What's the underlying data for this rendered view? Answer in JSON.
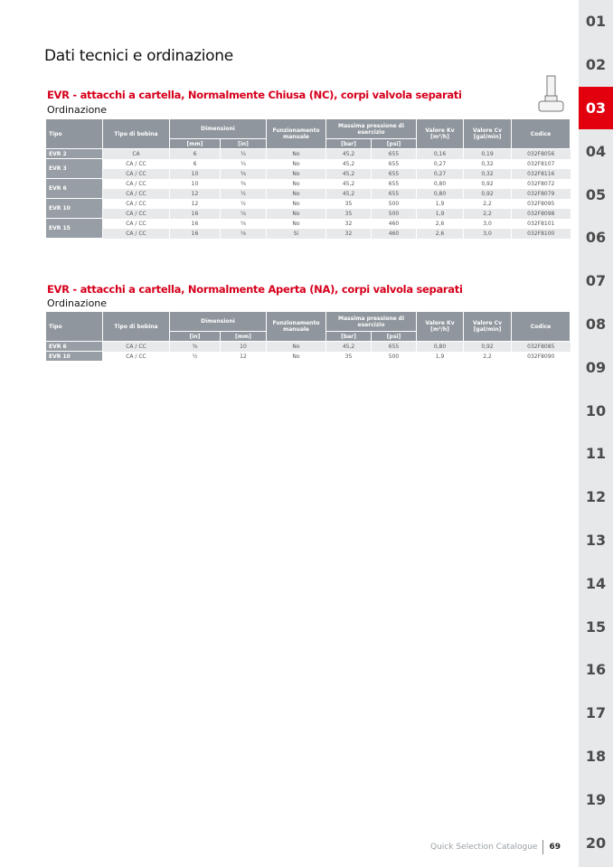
{
  "page_title": "Dati tecnici e ordinazione",
  "sidebar": {
    "tabs": [
      "01",
      "02",
      "03",
      "04",
      "05",
      "06",
      "07",
      "08",
      "09",
      "10",
      "11",
      "12",
      "13",
      "14",
      "15",
      "16",
      "17",
      "18",
      "19",
      "20"
    ],
    "active": "03",
    "accent": "#e2000f"
  },
  "sections": [
    {
      "title": "EVR - attacchi a cartella, Normalmente Chiusa (NC), corpi valvola separati",
      "subtitle": "Ordinazione",
      "headers": {
        "tipo": "Tipo",
        "bobina": "Tipo di bobina",
        "dim": "Dimensioni",
        "dim_units": [
          "[mm]",
          "[in]"
        ],
        "funz": "Funzionamento manuale",
        "press": "Massima pressione di esercizio",
        "press_units": [
          "[bar]",
          "[psi]"
        ],
        "kv": "Valore Kv [m³/h]",
        "cv": "Valore Cv [gal/min]",
        "codice": "Codice"
      },
      "groups": [
        {
          "tipo": "EVR 2",
          "rows": [
            [
              "CA",
              "6",
              "¼",
              "No",
              "45,2",
              "655",
              "0,16",
              "0,19",
              "032F8056"
            ]
          ]
        },
        {
          "tipo": "EVR 3",
          "rows": [
            [
              "CA / CC",
              "6",
              "¼",
              "No",
              "45,2",
              "655",
              "0,27",
              "0,32",
              "032F8107"
            ],
            [
              "CA / CC",
              "10",
              "⅜",
              "No",
              "45,2",
              "655",
              "0,27",
              "0,32",
              "032F8116"
            ]
          ]
        },
        {
          "tipo": "EVR 6",
          "rows": [
            [
              "CA / CC",
              "10",
              "⅜",
              "No",
              "45,2",
              "655",
              "0,80",
              "0,92",
              "032F8072"
            ],
            [
              "CA / CC",
              "12",
              "½",
              "No",
              "45,2",
              "655",
              "0,80",
              "0,92",
              "032F8079"
            ]
          ]
        },
        {
          "tipo": "EVR 10",
          "rows": [
            [
              "CA / CC",
              "12",
              "½",
              "No",
              "35",
              "500",
              "1,9",
              "2,2",
              "032F8095"
            ],
            [
              "CA / CC",
              "16",
              "⅝",
              "No",
              "35",
              "500",
              "1,9",
              "2,2",
              "032F8098"
            ]
          ]
        },
        {
          "tipo": "EVR 15",
          "rows": [
            [
              "CA / CC",
              "16",
              "⅝",
              "No",
              "32",
              "460",
              "2,6",
              "3,0",
              "032F8101"
            ],
            [
              "CA / CC",
              "16",
              "⅝",
              "Si",
              "32",
              "460",
              "2,6",
              "3,0",
              "032F8100"
            ]
          ]
        }
      ]
    },
    {
      "title": "EVR - attacchi a cartella, Normalmente Aperta (NA), corpi valvola separati",
      "subtitle": "Ordinazione",
      "headers": {
        "tipo": "Tipo",
        "bobina": "Tipo di bobina",
        "dim": "Dimensioni",
        "dim_units": [
          "[in]",
          "[mm]"
        ],
        "funz": "Funzionamento manuale",
        "press": "Massima pressione di esercizio",
        "press_units": [
          "[bar]",
          "[psi]"
        ],
        "kv": "Valore Kv [m³/h]",
        "cv": "Valore Cv [gal/min]",
        "codice": "Codice"
      },
      "groups": [
        {
          "tipo": "EVR 6",
          "rows": [
            [
              "CA / CC",
              "⅜",
              "10",
              "No",
              "45,2",
              "655",
              "0,80",
              "0,92",
              "032F8085"
            ]
          ]
        },
        {
          "tipo": "EVR 10",
          "rows": [
            [
              "CA / CC",
              "½",
              "12",
              "No",
              "35",
              "500",
              "1,9",
              "2,2",
              "032F8090"
            ]
          ]
        }
      ]
    }
  ],
  "footer": {
    "catalogue": "Quick Selection Catalogue",
    "page": "69"
  }
}
